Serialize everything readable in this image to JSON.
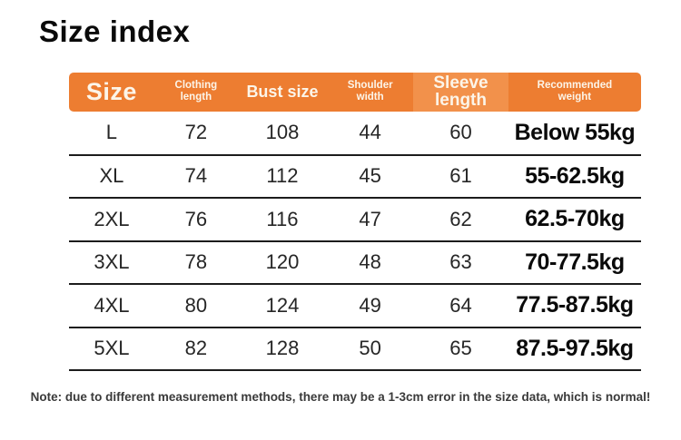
{
  "page": {
    "title": "Size index",
    "note": "Note: due to different measurement methods, there may be a 1-3cm error in the size data, which is normal!"
  },
  "colors": {
    "header_bg": "#ED7D31",
    "header_highlight_bg": "#F2914B",
    "header_text": "#FCF5E9",
    "row_line": "#1C1C1C",
    "body_text": "#262626",
    "weight_text": "#0A0A0A"
  },
  "table": {
    "columns": [
      {
        "key": "size",
        "label": "Size",
        "style": "xl",
        "highlight": false
      },
      {
        "key": "clothing-length",
        "label": "Clothing length",
        "style": "sm",
        "highlight": false
      },
      {
        "key": "bust-size",
        "label": "Bust size",
        "style": "md",
        "highlight": false
      },
      {
        "key": "shoulder-width",
        "label": "Shoulder width",
        "style": "sm",
        "highlight": false
      },
      {
        "key": "sleeve-length",
        "label": "Sleeve length",
        "style": "md2",
        "highlight": true
      },
      {
        "key": "recommended-weight",
        "label": "Recommended weight",
        "style": "sm wide",
        "highlight": false
      }
    ],
    "rows": [
      {
        "cells": [
          "L",
          "72",
          "108",
          "44",
          "60",
          "Below 55kg"
        ]
      },
      {
        "cells": [
          "XL",
          "74",
          "112",
          "45",
          "61",
          "55-62.5kg"
        ]
      },
      {
        "cells": [
          "2XL",
          "76",
          "116",
          "47",
          "62",
          "62.5-70kg"
        ]
      },
      {
        "cells": [
          "3XL",
          "78",
          "120",
          "48",
          "63",
          "70-77.5kg"
        ]
      },
      {
        "cells": [
          "4XL",
          "80",
          "124",
          "49",
          "64",
          "77.5-87.5kg"
        ]
      },
      {
        "cells": [
          "5XL",
          "82",
          "128",
          "50",
          "65",
          "87.5-97.5kg"
        ]
      }
    ]
  }
}
